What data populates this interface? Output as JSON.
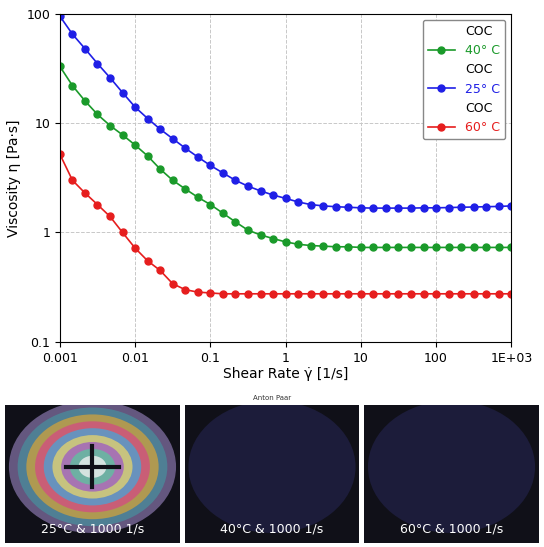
{
  "chart_data": {
    "type": "line",
    "x_label": "Shear Rate γ̇ [1/s]",
    "y_label": "Viscosity η [Pa·s]",
    "log": true,
    "grid": true,
    "legend": "upper right",
    "xlim": [
      0.001,
      1000
    ],
    "ylim": [
      0.1,
      100
    ],
    "xticks": [
      0.001,
      0.01,
      0.1,
      1,
      10,
      100,
      {
        "value": 1000,
        "label": "1E+03"
      }
    ],
    "yticks": [
      0.1,
      1,
      10,
      100
    ],
    "x": [
      0.001,
      0.00147,
      0.00215,
      0.00316,
      0.00464,
      0.00681,
      0.01,
      0.0147,
      0.0215,
      0.0316,
      0.0464,
      0.0681,
      0.1,
      0.147,
      0.215,
      0.316,
      0.464,
      0.681,
      1,
      1.47,
      2.15,
      3.16,
      4.64,
      6.81,
      10,
      14.7,
      21.5,
      31.6,
      46.4,
      68.1,
      100,
      147,
      215,
      316,
      464,
      681,
      1000
    ],
    "series": [
      {
        "group": "COC",
        "name": "40° C",
        "color": "#1a9a2a",
        "marker": "circle",
        "line_style": "solid",
        "values": [
          33,
          22,
          16,
          12,
          9.5,
          7.8,
          6.3,
          5.0,
          3.8,
          3.0,
          2.5,
          2.1,
          1.8,
          1.5,
          1.25,
          1.05,
          0.95,
          0.88,
          0.82,
          0.78,
          0.76,
          0.75,
          0.74,
          0.74,
          0.73,
          0.73,
          0.73,
          0.73,
          0.73,
          0.73,
          0.73,
          0.73,
          0.73,
          0.73,
          0.73,
          0.73,
          0.73
        ]
      },
      {
        "group": "COC",
        "name": "25° C",
        "color": "#1f1fe6",
        "marker": "circle",
        "line_style": "solid",
        "values": [
          95,
          65,
          48,
          35,
          26,
          19,
          14,
          11,
          8.8,
          7.2,
          5.9,
          4.9,
          4.1,
          3.5,
          3.0,
          2.65,
          2.4,
          2.2,
          2.05,
          1.9,
          1.8,
          1.75,
          1.72,
          1.7,
          1.68,
          1.67,
          1.67,
          1.67,
          1.67,
          1.68,
          1.68,
          1.69,
          1.7,
          1.71,
          1.72,
          1.73,
          1.75
        ]
      },
      {
        "group": "COC",
        "name": "60° C",
        "color": "#e61e1e",
        "marker": "circle",
        "line_style": "solid",
        "values": [
          5.2,
          3.0,
          2.3,
          1.8,
          1.4,
          1.0,
          0.72,
          0.55,
          0.45,
          0.34,
          0.3,
          0.285,
          0.28,
          0.275,
          0.275,
          0.275,
          0.275,
          0.275,
          0.275,
          0.275,
          0.275,
          0.275,
          0.275,
          0.275,
          0.275,
          0.275,
          0.275,
          0.275,
          0.275,
          0.275,
          0.275,
          0.275,
          0.275,
          0.275,
          0.275,
          0.275,
          0.275
        ]
      }
    ],
    "annotations": [
      "Anton Paar"
    ],
    "images": [
      {
        "caption": "25°C & 1000 1/s"
      },
      {
        "caption": "40°C & 1000 1/s"
      },
      {
        "caption": "60°C & 1000 1/s"
      }
    ]
  }
}
